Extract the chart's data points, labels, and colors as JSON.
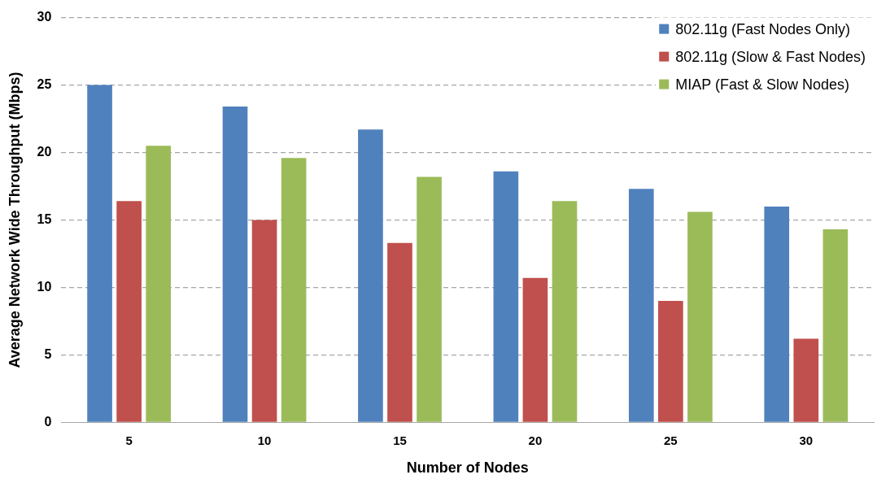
{
  "chart_data": {
    "type": "bar",
    "xlabel": "Number of Nodes",
    "ylabel": "Average Network Wide Throughput (Mbps)",
    "categories": [
      "5",
      "10",
      "15",
      "20",
      "25",
      "30"
    ],
    "series": [
      {
        "name": "802.11g (Fast Nodes Only)",
        "color": "#4f81bd",
        "values": [
          25.0,
          23.4,
          21.7,
          18.6,
          17.3,
          16.0
        ]
      },
      {
        "name": "802.11g (Slow & Fast Nodes)",
        "color": "#c0504d",
        "values": [
          16.4,
          15.0,
          13.3,
          10.7,
          9.0,
          6.2
        ]
      },
      {
        "name": "MIAP (Fast & Slow Nodes)",
        "color": "#9bbb59",
        "values": [
          20.5,
          19.6,
          18.2,
          16.4,
          15.6,
          14.3
        ]
      }
    ],
    "ylim": [
      0,
      30
    ],
    "yticks": [
      0,
      5,
      10,
      15,
      20,
      25,
      30
    ],
    "grid": "y",
    "legend": "top right"
  }
}
